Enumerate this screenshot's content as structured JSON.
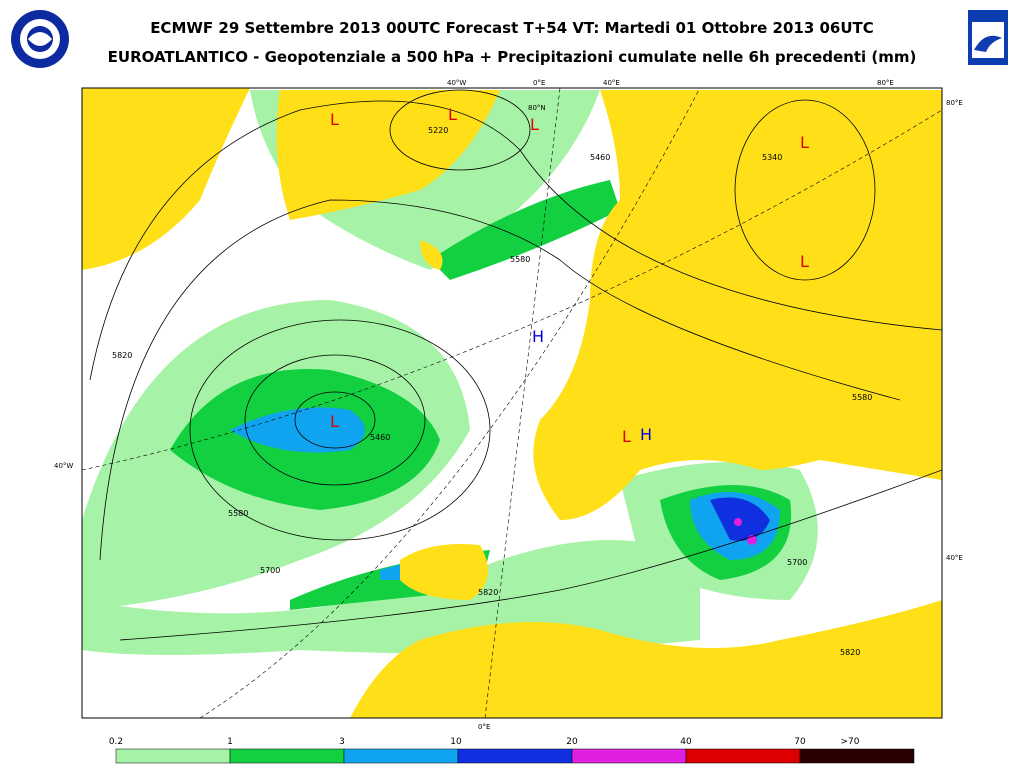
{
  "header": {
    "title": "ECMWF 29 Settembre 2013 00UTC Forecast T+54 VT: Martedi 01 Ottobre 2013 06UTC",
    "subtitle": "EUROATLANTICO - Geopotenziale a 500 hPa + Precipitazioni cumulate nelle 6h precedenti (mm)"
  },
  "map": {
    "contour_labels": [
      "5220",
      "5580",
      "5580",
      "5460",
      "5820",
      "5700",
      "5340",
      "5580",
      "5700",
      "5820",
      "5820",
      "5460"
    ],
    "systems": [
      "L",
      "L",
      "L",
      "L",
      "L",
      "L",
      "L",
      "H",
      "H"
    ],
    "graticule_labels": [
      "40°W",
      "0°E",
      "40°E",
      "80°E",
      "80°E",
      "40°E",
      "40°W",
      "0°E",
      "80°N"
    ]
  },
  "legend": {
    "labels": [
      "0.2",
      "1",
      "3",
      "10",
      "20",
      "40",
      "70",
      ">70"
    ]
  }
}
